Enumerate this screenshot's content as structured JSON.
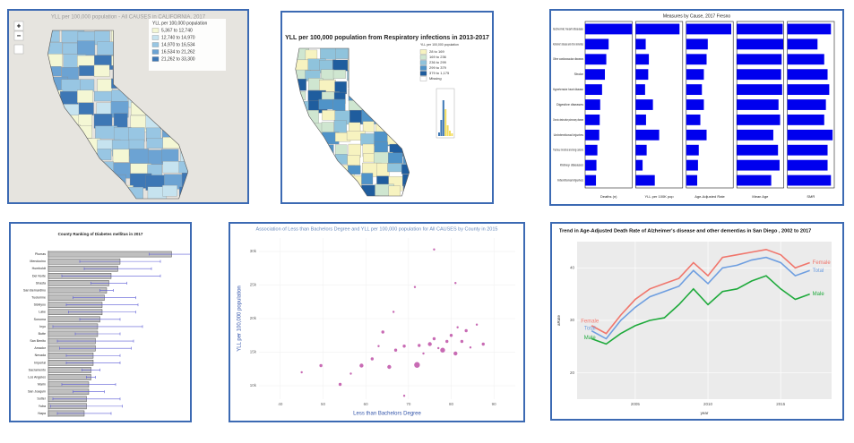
{
  "panels": [
    {
      "kind": "map",
      "title": "YLL per 100,000 population - All CAUSES in CALIFORNIA, 2017",
      "legend_title": "YLL per 100,000 population",
      "legend": [
        "5,367 to 12,740",
        "12,740 to 14,970",
        "14,970 to 16,534",
        "16,534 to 21,262",
        "21,262 to 33,300"
      ],
      "colors": [
        "#f4f7d4",
        "#c6e3ef",
        "#98c6e3",
        "#6ca3d3",
        "#3d77b5"
      ],
      "controls": [
        "+",
        "−"
      ]
    },
    {
      "kind": "map",
      "title": "YLL per 100,000 population from Respiratory infections in 2013-2017",
      "legend_title": "YLL per 100,000 population",
      "legend": [
        "28 to 169",
        "169 to 236",
        "236 to 299",
        "299 to 379",
        "379 to 1,175",
        "Missing"
      ],
      "colors": [
        "#f7f3c0",
        "#cfe6d0",
        "#8fc3dc",
        "#4f93c8",
        "#1f5d9e",
        "#ffffff"
      ]
    },
    {
      "kind": "bar-grid",
      "title": "Measures by Cause, 2017 Fresno",
      "color": "#0000ee",
      "categories": [
        "Ischemic heart disease",
        "Alzheimer's disease and other dementias",
        "Other cardiovascular diseases",
        "Stroke",
        "Hypertensive heart disease",
        "Digestive diseases",
        "Chronic obstructive pulmonary disease",
        "Unintentional injuries",
        "Trachea, bronchus and lung cancers",
        "Kidney diseases",
        "Intentional injuries"
      ],
      "facets": [
        {
          "label": "Deaths (n)",
          "xlim": [
            0,
            1000
          ],
          "values": [
            1000,
            500,
            450,
            420,
            360,
            320,
            310,
            300,
            260,
            240,
            230
          ]
        },
        {
          "label": "YLL per 100K pop",
          "xlim": [
            0,
            1500
          ],
          "values": [
            1400,
            320,
            420,
            400,
            300,
            550,
            330,
            750,
            350,
            220,
            610
          ]
        },
        {
          "label": "Age-Adjusted Rate",
          "xlim": [
            0,
            120
          ],
          "values": [
            115,
            55,
            52,
            45,
            40,
            45,
            36,
            52,
            32,
            30,
            28
          ]
        },
        {
          "label": "Mean Age",
          "xlim": [
            0,
            90
          ],
          "values": [
            88,
            89,
            86,
            85,
            87,
            80,
            83,
            70,
            79,
            82,
            66
          ]
        },
        {
          "label": "SMR",
          "xlim": [
            0,
            1.4
          ],
          "values": [
            1.3,
            0.9,
            1.1,
            1.2,
            1.25,
            1.15,
            1.1,
            1.35,
            1.2,
            1.2,
            1.3
          ]
        }
      ]
    },
    {
      "kind": "error-bar",
      "title": "County Ranking of Diabetes mellitus in 2017",
      "color": "#bfbfbf",
      "error_color": "#5b5bd6",
      "xlim": [
        0,
        60
      ],
      "categories": [
        "Plumas",
        "Mendocino",
        "Humboldt",
        "Del Norte",
        "Shasta",
        "San Bernardino",
        "Tuolumne",
        "Siskiyou",
        "Lake",
        "Sonoma",
        "Inyo",
        "Butte",
        "San Benito",
        "Amador",
        "Nevada",
        "Imperial",
        "Sacramento",
        "Los Angeles",
        "Marin",
        "San Joaquin",
        "Sutter",
        "Yuba",
        "Napa"
      ],
      "values": [
        55,
        32,
        31,
        28,
        27,
        26,
        25,
        24,
        24,
        23,
        22,
        22,
        21,
        21,
        20,
        20,
        19,
        19,
        18,
        18,
        17,
        17,
        16
      ],
      "errors": [
        10,
        18,
        15,
        22,
        8,
        3,
        14,
        16,
        15,
        9,
        20,
        10,
        17,
        16,
        12,
        12,
        4,
        2,
        12,
        7,
        15,
        16,
        12
      ]
    },
    {
      "kind": "scatter",
      "title": "Association of Less than Bachelors Degree and YLL per 100,000 population for All CAUSES by County in 2015",
      "x_label": "Less than Bachelors Degree",
      "y_label": "YLL per 100,000 population",
      "color": "#b5399b",
      "xlim": [
        35,
        95
      ],
      "xticks": [
        40,
        50,
        60,
        70,
        80,
        90
      ],
      "ylim": [
        8000,
        32000
      ],
      "yticks": [
        {
          "value": 10000,
          "label": "10k"
        },
        {
          "value": 15000,
          "label": "15k"
        },
        {
          "value": 20000,
          "label": "20k"
        },
        {
          "value": 25000,
          "label": "25k"
        },
        {
          "value": 30000,
          "label": "30k"
        }
      ],
      "x": [
        45,
        49.5,
        54,
        56.5,
        59,
        61.5,
        63,
        64,
        65.5,
        67,
        69,
        72,
        72.5,
        73.5,
        75,
        76,
        77,
        78,
        79,
        80,
        81,
        81.5,
        82.5,
        83.5,
        84.5,
        86,
        87.5,
        76,
        71.5,
        69,
        66.5,
        81
      ],
      "y": [
        12000,
        13000,
        10200,
        11800,
        13000,
        14000,
        15900,
        18000,
        12800,
        15300,
        15900,
        13100,
        16000,
        14800,
        16200,
        17000,
        15600,
        15300,
        16600,
        17500,
        14800,
        18700,
        16600,
        18200,
        15700,
        19100,
        16200,
        30300,
        24700,
        8500,
        21000,
        25300
      ],
      "sizes": [
        1,
        2,
        2,
        1,
        3,
        2,
        1,
        2,
        3,
        2,
        2,
        5,
        2,
        1,
        3,
        2,
        1,
        4,
        2,
        2,
        3,
        1,
        2,
        2,
        1,
        1,
        2,
        1,
        1,
        1,
        1,
        1
      ]
    },
    {
      "kind": "line",
      "title": "Trend in  Age-Adjusted Death Rate of Alzheimer's disease and other dementias  in San Diego ,  2002 to 2017",
      "x_label": "year",
      "y_label": "aRate",
      "x": [
        2002,
        2003,
        2004,
        2005,
        2006,
        2007,
        2008,
        2009,
        2010,
        2011,
        2012,
        2013,
        2014,
        2015,
        2016,
        2017
      ],
      "xlim": [
        2001,
        2018.5
      ],
      "xticks": [
        2005,
        2010,
        2015
      ],
      "ylim": [
        15,
        45
      ],
      "yticks": [
        20,
        30,
        40
      ],
      "series": [
        {
          "name": "Female",
          "color": "#f0766c",
          "values": [
            29,
            27.5,
            31,
            34,
            36,
            37,
            38,
            41,
            38.5,
            42,
            42.5,
            43,
            43.5,
            42.5,
            40,
            41
          ]
        },
        {
          "name": "Total",
          "color": "#6e9ee0",
          "values": [
            28,
            26.5,
            30,
            32.5,
            34.5,
            35.5,
            36.5,
            39.5,
            37,
            40,
            40.5,
            41.5,
            42,
            41,
            38.5,
            39.5
          ]
        },
        {
          "name": "Male",
          "color": "#1faa3c",
          "values": [
            26.5,
            25.5,
            27.5,
            29,
            30,
            30.5,
            33,
            36,
            33,
            35.5,
            36,
            37.5,
            38.5,
            36,
            34,
            35
          ]
        }
      ]
    }
  ]
}
